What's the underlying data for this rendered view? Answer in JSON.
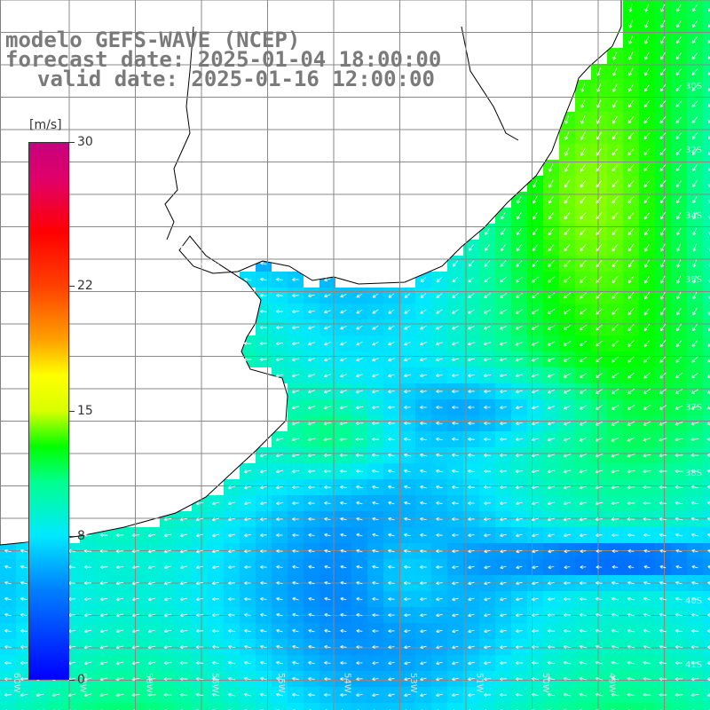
{
  "title": {
    "line1": "modelo GEFS-WAVE (NCEP)",
    "line2": "forecast date: 2025-01-04 18:00:00",
    "line3": "valid date: 2025-01-16 12:00:00"
  },
  "colorbar": {
    "unit": "[m/s]",
    "ticks": [
      {
        "label": "30",
        "value": 30
      },
      {
        "label": "22",
        "value": 22
      },
      {
        "label": "15",
        "value": 15
      },
      {
        "label": "8",
        "value": 8
      },
      {
        "label": "0",
        "value": 0
      }
    ],
    "stops": [
      {
        "value": 0,
        "color": "#0000ff"
      },
      {
        "value": 5,
        "color": "#0080ff"
      },
      {
        "value": 8,
        "color": "#00e8ff"
      },
      {
        "value": 11,
        "color": "#00ff90"
      },
      {
        "value": 13,
        "color": "#00ff00"
      },
      {
        "value": 15,
        "color": "#d8ff00"
      },
      {
        "value": 17,
        "color": "#ffff00"
      },
      {
        "value": 19,
        "color": "#ffa000"
      },
      {
        "value": 22,
        "color": "#ff4000"
      },
      {
        "value": 25,
        "color": "#ff0000"
      },
      {
        "value": 28,
        "color": "#e0006a"
      },
      {
        "value": 30,
        "color": "#c8007e"
      }
    ]
  },
  "map_labels": {
    "latitude": [
      "30S",
      "32S",
      "34S",
      "35S",
      "37S",
      "38S",
      "40S",
      "41S"
    ],
    "longitude": [
      "60W",
      "59W",
      "58W",
      "56W",
      "55W",
      "54W",
      "53W",
      "51W",
      "50W",
      "49W"
    ]
  },
  "colors": {
    "ocean_background": "#00c8ff",
    "land": "#ffffff",
    "grid": "#888888",
    "coastline": "#000000",
    "arrow": "#ffffff"
  }
}
